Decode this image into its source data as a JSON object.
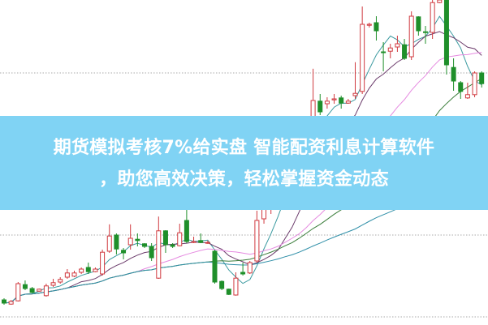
{
  "banner": {
    "line1": "期货模拟考核7%给实盘 智能配资利息计算软件",
    "line2": "，助您高效决策，轻松掌握资金动态",
    "band_color": "#80d3f4",
    "text_color": "#ffffff"
  },
  "chart_data": {
    "type": "candlestick",
    "grid": "dotted horizontal",
    "up_color": "#d0393f",
    "down_color": "#1f8f2a",
    "moving_averages": [
      {
        "period": 5,
        "color": "#3b9aa0"
      },
      {
        "period": 10,
        "color": "#6b3b6b"
      },
      {
        "period": 20,
        "color": "#e58ae0"
      },
      {
        "period": 30,
        "color": "#3a7d3a"
      },
      {
        "period": 60,
        "color": "#2f8fa8"
      }
    ],
    "candles": [
      [
        7.5,
        6.5,
        8,
        6
      ],
      [
        6.2,
        7,
        7.5,
        6
      ],
      [
        7.2,
        12.5,
        13,
        7
      ],
      [
        12.2,
        11,
        13.5,
        10.5
      ],
      [
        11,
        9.8,
        11.5,
        9.5
      ],
      [
        10.2,
        10.8,
        11,
        10
      ],
      [
        8.8,
        11.8,
        12.5,
        8.5
      ],
      [
        12,
        12.8,
        14,
        11.5
      ],
      [
        13,
        13.8,
        14.5,
        12.5
      ],
      [
        14.5,
        15.8,
        17,
        14
      ],
      [
        14.8,
        15.8,
        16.5,
        14.5
      ],
      [
        16,
        17,
        17.5,
        15.5
      ],
      [
        17.5,
        16.2,
        19,
        15.5
      ],
      [
        16.2,
        17,
        17.5,
        16
      ],
      [
        15.5,
        22.2,
        23,
        15
      ],
      [
        22.5,
        27.2,
        30.8,
        22
      ],
      [
        27.5,
        23.2,
        28,
        21.5
      ],
      [
        22.8,
        22,
        23.5,
        20
      ],
      [
        24.5,
        26.5,
        30.8,
        23
      ],
      [
        26.2,
        25.8,
        28,
        24
      ],
      [
        24.8,
        24,
        25,
        23.5
      ],
      [
        24,
        20.5,
        25,
        19.5
      ],
      [
        14.2,
        28.8,
        33.2,
        14
      ],
      [
        28.8,
        24.5,
        29,
        22
      ],
      [
        24.5,
        24,
        25,
        23.5
      ],
      [
        24.2,
        28.2,
        31,
        24
      ],
      [
        32,
        25.5,
        35.5,
        25
      ],
      [
        25.2,
        25.5,
        27,
        25
      ],
      [
        25.8,
        25.2,
        28,
        25
      ],
      [
        25,
        25.2,
        25.8,
        24.8
      ],
      [
        22.5,
        13,
        23,
        12.5
      ],
      [
        13.2,
        11,
        13.5,
        10.5
      ],
      [
        10.8,
        9.2,
        11,
        9
      ],
      [
        9,
        14.2,
        16,
        8.8
      ],
      [
        16,
        15.5,
        19,
        15
      ],
      [
        15.8,
        19,
        19.5,
        15.5
      ],
      [
        19.5,
        32,
        35,
        19
      ],
      [
        32.5,
        35.5,
        36,
        31
      ],
      [
        35.8,
        37.5,
        38,
        34
      ],
      [
        37.5,
        42,
        44,
        37
      ],
      [
        42,
        48,
        49,
        41
      ],
      [
        48,
        46,
        50,
        45
      ],
      [
        46,
        56,
        58,
        45
      ],
      [
        56,
        62,
        64,
        55
      ],
      [
        58,
        69,
        78.8,
        57
      ],
      [
        68.8,
        65.5,
        71,
        64.5
      ],
      [
        68,
        68.8,
        70,
        66.5
      ],
      [
        69.2,
        69.5,
        71,
        68
      ],
      [
        69.8,
        68.2,
        70.5,
        66.5
      ],
      [
        68.2,
        68.8,
        69.5,
        68
      ],
      [
        70.5,
        71.2,
        80.8,
        69.5
      ],
      [
        71.8,
        92.5,
        98,
        71
      ],
      [
        92.2,
        92.5,
        93,
        91.5
      ],
      [
        93,
        90.5,
        95,
        87.5
      ],
      [
        84,
        83.8,
        87,
        78
      ],
      [
        84.2,
        85.2,
        86.5,
        82
      ],
      [
        85.5,
        86.5,
        89,
        84
      ],
      [
        86.2,
        82,
        88,
        81.5
      ],
      [
        82.5,
        95,
        96.5,
        81.5
      ],
      [
        94.8,
        90.5,
        95,
        89
      ],
      [
        90.2,
        90,
        92,
        86.5
      ],
      [
        90,
        99.2,
        100,
        88
      ],
      [
        99.2,
        100,
        100,
        99
      ],
      [
        100,
        80,
        100,
        77
      ],
      [
        79.2,
        75,
        82,
        72
      ],
      [
        74.5,
        71.8,
        75,
        69.5
      ],
      [
        69.8,
        70.8,
        74.5,
        69.5
      ],
      [
        70.8,
        77.5,
        78,
        70
      ],
      [
        77.5,
        74.2,
        78,
        73
      ]
    ]
  }
}
